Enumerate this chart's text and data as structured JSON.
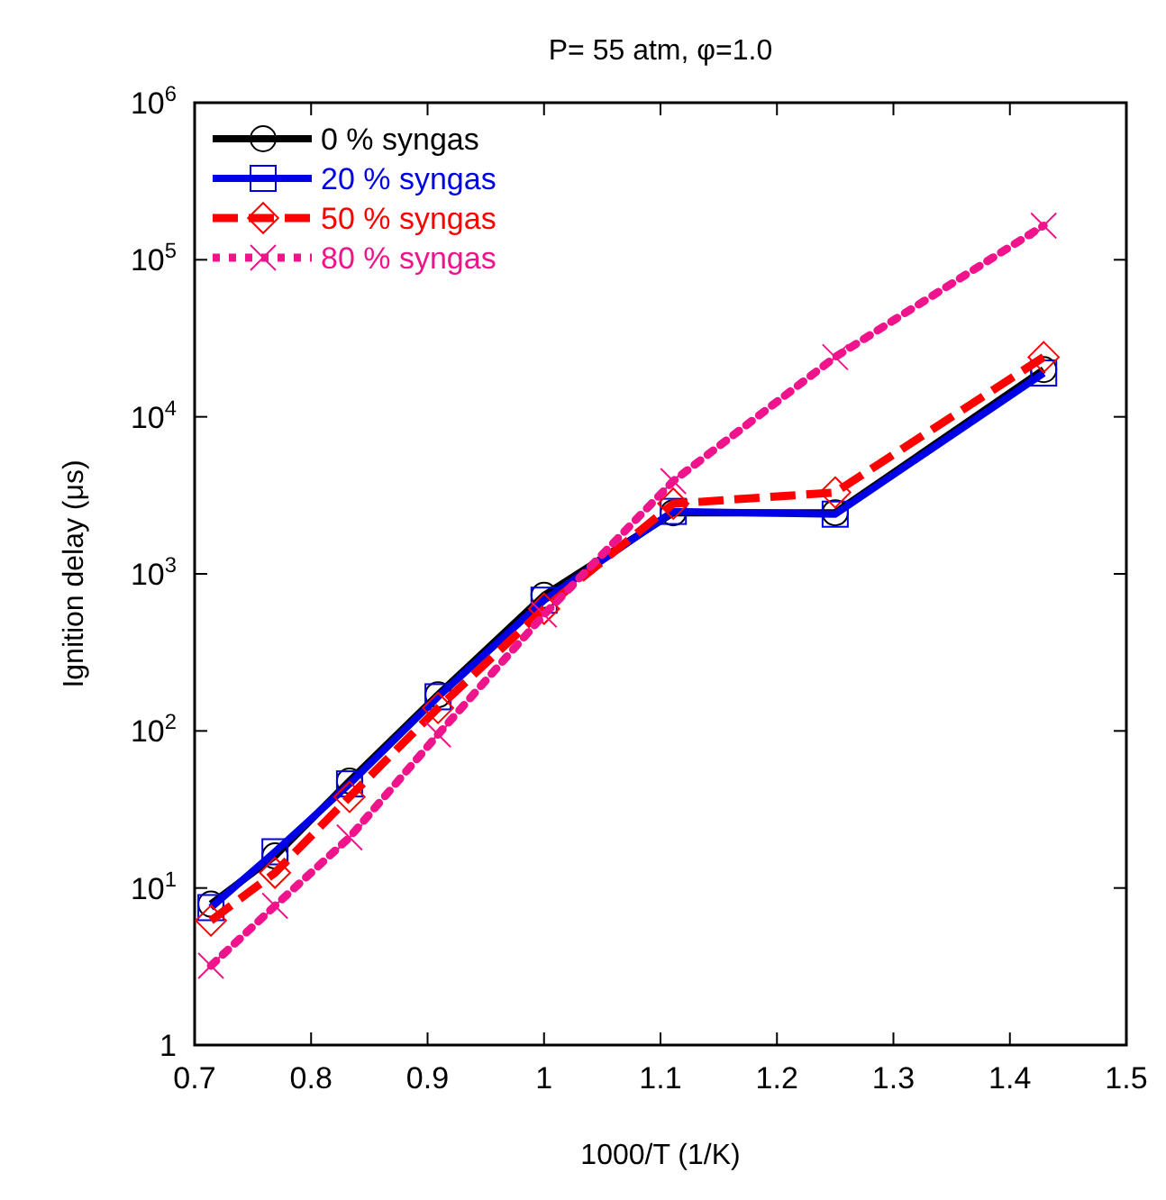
{
  "chart_data": {
    "type": "line",
    "title": "P= 55 atm, φ=1.0",
    "xlabel": "1000/T (1/K)",
    "ylabel": "Ignition delay (μs)",
    "x": [
      0.714,
      0.769,
      0.833,
      0.909,
      1.0,
      1.111,
      1.25,
      1.429
    ],
    "series": [
      {
        "name": "0 % syngas",
        "color": "#000000",
        "marker": "circle",
        "line_style": "solid",
        "values": [
          7.9,
          16,
          48,
          170,
          730,
          2450,
          2450,
          20000
        ]
      },
      {
        "name": "20 % syngas",
        "color": "#0000e6",
        "marker": "square",
        "line_style": "solid",
        "values": [
          7.5,
          17,
          46,
          165,
          680,
          2500,
          2400,
          19000
        ]
      },
      {
        "name": "50 % syngas",
        "color": "#ff0000",
        "marker": "diamond",
        "line_style": "dashed",
        "values": [
          6.2,
          12.5,
          38,
          140,
          600,
          2800,
          3300,
          24000
        ]
      },
      {
        "name": "80 % syngas",
        "color": "#f0148c",
        "marker": "cross",
        "line_style": "dotted",
        "values": [
          3.2,
          7.7,
          21,
          95,
          550,
          3900,
          24000,
          165000
        ]
      }
    ],
    "xlim": [
      0.7,
      1.5
    ],
    "xticks": [
      0.7,
      0.8,
      0.9,
      1,
      1.1,
      1.2,
      1.3,
      1.4,
      1.5
    ],
    "ylim": [
      1,
      1000000
    ],
    "yticks": [
      1,
      {
        "value": 10,
        "label": "10$^{1}$"
      },
      {
        "value": 100,
        "label": "10$^{2}$"
      },
      {
        "value": 1000,
        "label": "10$^{3}$"
      },
      {
        "value": 10000,
        "label": "10$^{4}$"
      },
      {
        "value": 100000,
        "label": "10$^{5}$"
      },
      {
        "value": 1000000,
        "label": "10$^{6}$"
      }
    ],
    "log": true,
    "grid": false,
    "legend": "top left"
  }
}
